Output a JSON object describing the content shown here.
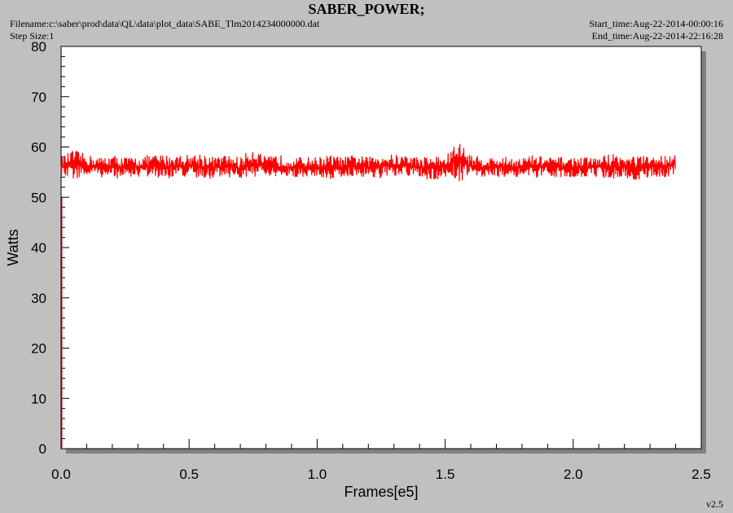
{
  "header": {
    "title": "SABER_POWER;",
    "filename": "Filename:c:\\saber\\prod\\data\\QL\\data\\plot_data\\SABE_Tlm2014234000000.dat",
    "step_size": "Step Size:1",
    "start_time": "Start_time:Aug-22-2014-00:00:16",
    "end_time": "End_time:Aug-22-2014-22:16:28"
  },
  "footer": {
    "version": "v2.5"
  },
  "colors": {
    "series": "#ff0000",
    "plot_bg": "#ffffff",
    "frame_bg": "#c0c0c0",
    "shadow": "#808080"
  },
  "chart_data": {
    "type": "line",
    "title": "SABER_POWER;",
    "xlabel": "Frames[e5]",
    "ylabel": "Watts",
    "xlim": [
      0,
      2.5
    ],
    "ylim": [
      0,
      80
    ],
    "x_ticks": [
      0.0,
      0.5,
      1.0,
      1.5,
      2.0,
      2.5
    ],
    "x_tick_labels": [
      "0.0",
      "0.5",
      "1.0",
      "1.5",
      "2.0",
      "2.5"
    ],
    "y_ticks": [
      0,
      10,
      20,
      30,
      40,
      50,
      60,
      70,
      80
    ],
    "y_tick_labels": [
      "0",
      "10",
      "20",
      "30",
      "40",
      "50",
      "60",
      "70",
      "80"
    ],
    "grid": false,
    "legend": "none",
    "series": [
      {
        "x_range": [
          0,
          2.4
        ],
        "band": [
          [
            0.0,
            54.0,
            58.0
          ],
          [
            0.05,
            53.5,
            59.5
          ],
          [
            0.1,
            54.0,
            58.5
          ],
          [
            0.15,
            54.0,
            58.0
          ],
          [
            0.2,
            53.5,
            58.5
          ],
          [
            0.25,
            54.0,
            58.0
          ],
          [
            0.3,
            54.0,
            58.0
          ],
          [
            0.35,
            54.0,
            58.5
          ],
          [
            0.4,
            53.5,
            58.5
          ],
          [
            0.45,
            54.0,
            58.5
          ],
          [
            0.5,
            54.0,
            58.5
          ],
          [
            0.55,
            53.0,
            59.0
          ],
          [
            0.6,
            54.0,
            58.0
          ],
          [
            0.65,
            54.0,
            58.5
          ],
          [
            0.7,
            53.5,
            58.0
          ],
          [
            0.75,
            54.0,
            60.0
          ],
          [
            0.8,
            54.0,
            58.0
          ],
          [
            0.85,
            53.5,
            58.5
          ],
          [
            0.9,
            54.0,
            58.0
          ],
          [
            0.95,
            54.0,
            58.0
          ],
          [
            1.0,
            54.0,
            58.0
          ],
          [
            1.05,
            53.5,
            58.5
          ],
          [
            1.1,
            54.0,
            58.0
          ],
          [
            1.15,
            54.0,
            58.5
          ],
          [
            1.2,
            54.0,
            58.0
          ],
          [
            1.25,
            53.5,
            59.0
          ],
          [
            1.3,
            54.0,
            58.5
          ],
          [
            1.35,
            54.0,
            58.5
          ],
          [
            1.4,
            54.0,
            58.0
          ],
          [
            1.45,
            53.0,
            58.5
          ],
          [
            1.5,
            54.0,
            58.0
          ],
          [
            1.55,
            53.0,
            61.5
          ],
          [
            1.6,
            54.0,
            58.5
          ],
          [
            1.65,
            54.0,
            58.0
          ],
          [
            1.7,
            54.0,
            58.0
          ],
          [
            1.75,
            54.0,
            58.0
          ],
          [
            1.8,
            54.0,
            58.0
          ],
          [
            1.85,
            53.5,
            58.5
          ],
          [
            1.9,
            54.0,
            58.0
          ],
          [
            1.95,
            54.0,
            58.0
          ],
          [
            2.0,
            54.0,
            58.0
          ],
          [
            2.05,
            54.0,
            58.0
          ],
          [
            2.1,
            54.0,
            58.0
          ],
          [
            2.15,
            53.5,
            59.0
          ],
          [
            2.2,
            54.0,
            58.0
          ],
          [
            2.25,
            53.0,
            58.5
          ],
          [
            2.3,
            54.0,
            58.0
          ],
          [
            2.35,
            54.0,
            58.5
          ],
          [
            2.4,
            54.0,
            59.0
          ]
        ]
      }
    ]
  }
}
